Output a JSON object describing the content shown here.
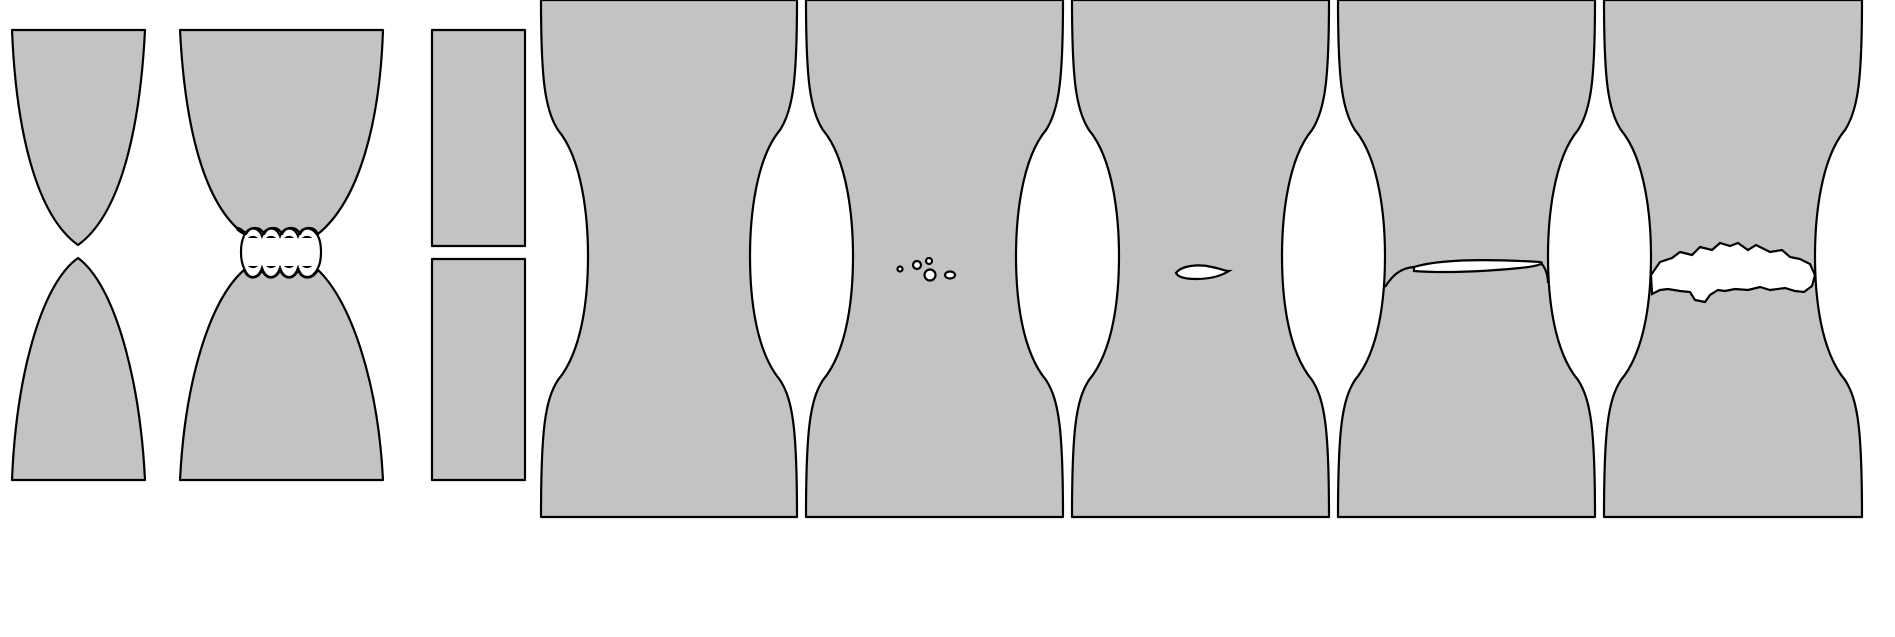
{
  "figure": {
    "description_text": "",
    "colors": {
      "specimen_fill": "#c3c3c3",
      "outline": "#000000",
      "background": "#ffffff"
    },
    "panels": [
      {
        "id": "pointed-rupture",
        "shape": "two cones meeting at a point"
      },
      {
        "id": "cup-and-cone-voids",
        "shape": "necked bar with chain of voids at neck"
      },
      {
        "id": "brittle-flat-fracture",
        "shape": "straight bar split flat"
      },
      {
        "id": "necking",
        "shape": "necked bar, intact"
      },
      {
        "id": "void-nucleation",
        "shape": "necked bar with small voids"
      },
      {
        "id": "void-growth",
        "shape": "necked bar with elongated void"
      },
      {
        "id": "crack-formation",
        "shape": "necked bar with central crack"
      },
      {
        "id": "fracture",
        "shape": "necked bar with jagged separated fracture"
      }
    ]
  }
}
